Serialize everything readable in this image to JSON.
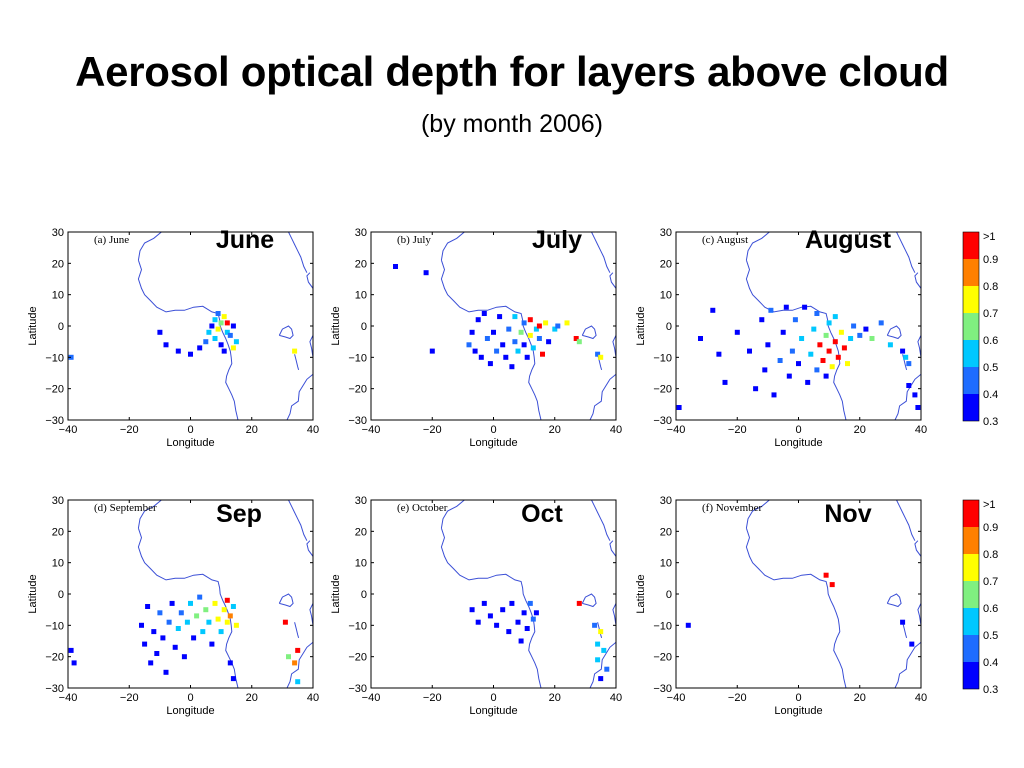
{
  "title": "Aerosol optical depth for layers above cloud",
  "subtitle": "(by month 2006)",
  "colors": {
    "map_outline": "#3b4fd6",
    "scale": [
      "#0000ff",
      "#1e6cff",
      "#00c8ff",
      "#80f080",
      "#ffff00",
      "#ff8000",
      "#ff0000"
    ]
  },
  "colorbar": {
    "labels": [
      ">1",
      "0.9",
      "0.8",
      "0.7",
      "0.6",
      "0.5",
      "0.4",
      "0.3"
    ]
  },
  "chart_data": [
    {
      "type": "scatter",
      "panel_label": "(a) June",
      "month_label": "June",
      "xlabel": "Longitude",
      "ylabel": "Latitude",
      "xlim": [
        -40,
        40
      ],
      "ylim": [
        -30,
        30
      ],
      "xticks": [
        "−40",
        "−20",
        "0",
        "20",
        "40"
      ],
      "yticks": [
        "30",
        "20",
        "10",
        "0",
        "−10",
        "−20",
        "−30"
      ],
      "points": [
        [
          -10,
          -2,
          0.3
        ],
        [
          -8,
          -6,
          0.3
        ],
        [
          -4,
          -8,
          0.3
        ],
        [
          0,
          -9,
          0.3
        ],
        [
          3,
          -7,
          0.35
        ],
        [
          5,
          -5,
          0.45
        ],
        [
          6,
          -2,
          0.5
        ],
        [
          7,
          0,
          0.35
        ],
        [
          8,
          2,
          0.55
        ],
        [
          8,
          -4,
          0.6
        ],
        [
          9,
          -1,
          0.75
        ],
        [
          10,
          1,
          0.65
        ],
        [
          10,
          -6,
          0.3
        ],
        [
          11,
          3,
          0.85
        ],
        [
          12,
          -2,
          0.55
        ],
        [
          12,
          1,
          1.05
        ],
        [
          13,
          -3,
          0.45
        ],
        [
          14,
          0,
          0.35
        ],
        [
          14,
          -7,
          0.8
        ],
        [
          15,
          -5,
          0.6
        ],
        [
          9,
          4,
          0.4
        ],
        [
          11,
          -8,
          0.3
        ],
        [
          -39,
          -10,
          0.4
        ],
        [
          34,
          -8,
          0.75
        ]
      ],
      "colorbar": false
    },
    {
      "type": "scatter",
      "panel_label": "(b) July",
      "month_label": "July",
      "xlabel": "Longitude",
      "ylabel": "Latitude",
      "xlim": [
        -40,
        40
      ],
      "ylim": [
        -30,
        30
      ],
      "xticks": [
        "−40",
        "−20",
        "0",
        "20",
        "40"
      ],
      "yticks": [
        "30",
        "20",
        "10",
        "0",
        "−10",
        "−20",
        "−30"
      ],
      "points": [
        [
          -32,
          19,
          0.3
        ],
        [
          -22,
          17,
          0.3
        ],
        [
          -20,
          -8,
          0.3
        ],
        [
          -8,
          -6,
          0.4
        ],
        [
          -7,
          -2,
          0.3
        ],
        [
          -6,
          -8,
          0.3
        ],
        [
          -5,
          2,
          0.35
        ],
        [
          -4,
          -10,
          0.3
        ],
        [
          -3,
          4,
          0.3
        ],
        [
          -2,
          -4,
          0.45
        ],
        [
          -1,
          -12,
          0.3
        ],
        [
          0,
          -2,
          0.3
        ],
        [
          1,
          -8,
          0.4
        ],
        [
          2,
          3,
          0.3
        ],
        [
          3,
          -6,
          0.3
        ],
        [
          4,
          -10,
          0.35
        ],
        [
          5,
          -1,
          0.4
        ],
        [
          6,
          -13,
          0.3
        ],
        [
          7,
          3,
          0.5
        ],
        [
          7,
          -5,
          0.45
        ],
        [
          8,
          -8,
          0.55
        ],
        [
          9,
          -2,
          0.65
        ],
        [
          10,
          1,
          0.45
        ],
        [
          10,
          -6,
          0.35
        ],
        [
          11,
          -10,
          0.3
        ],
        [
          12,
          -3,
          0.85
        ],
        [
          12,
          2,
          1.05
        ],
        [
          13,
          -7,
          0.5
        ],
        [
          14,
          -1,
          0.6
        ],
        [
          15,
          0,
          1.05
        ],
        [
          15,
          -4,
          0.4
        ],
        [
          16,
          -9,
          1.05
        ],
        [
          17,
          1,
          0.75
        ],
        [
          18,
          -5,
          0.35
        ],
        [
          20,
          -1,
          0.55
        ],
        [
          21,
          0,
          0.45
        ],
        [
          24,
          1,
          0.8
        ],
        [
          27,
          -4,
          1.05
        ],
        [
          28,
          -5,
          0.7
        ],
        [
          34,
          -9,
          0.4
        ],
        [
          35,
          -10,
          0.8
        ]
      ],
      "colorbar": false
    },
    {
      "type": "scatter",
      "panel_label": "(c) August",
      "month_label": "August",
      "xlabel": "Longitude",
      "ylabel": "Latitude",
      "xlim": [
        -40,
        40
      ],
      "ylim": [
        -30,
        30
      ],
      "xticks": [
        "−40",
        "−20",
        "0",
        "20",
        "40"
      ],
      "yticks": [
        "30",
        "20",
        "10",
        "0",
        "−10",
        "−20",
        "−30"
      ],
      "points": [
        [
          -39,
          -26,
          0.3
        ],
        [
          -32,
          -4,
          0.3
        ],
        [
          -28,
          5,
          0.3
        ],
        [
          -26,
          -9,
          0.3
        ],
        [
          -24,
          -18,
          0.3
        ],
        [
          -20,
          -2,
          0.3
        ],
        [
          -16,
          -8,
          0.35
        ],
        [
          -14,
          -20,
          0.3
        ],
        [
          -12,
          2,
          0.3
        ],
        [
          -11,
          -14,
          0.35
        ],
        [
          -10,
          -6,
          0.3
        ],
        [
          -9,
          5,
          0.4
        ],
        [
          -8,
          -22,
          0.3
        ],
        [
          -6,
          -11,
          0.45
        ],
        [
          -5,
          -2,
          0.3
        ],
        [
          -4,
          6,
          0.35
        ],
        [
          -3,
          -16,
          0.3
        ],
        [
          -2,
          -8,
          0.4
        ],
        [
          -1,
          2,
          0.45
        ],
        [
          0,
          -12,
          0.3
        ],
        [
          1,
          -4,
          0.55
        ],
        [
          2,
          6,
          0.3
        ],
        [
          3,
          -18,
          0.35
        ],
        [
          4,
          -9,
          0.6
        ],
        [
          5,
          -1,
          0.5
        ],
        [
          6,
          4,
          0.4
        ],
        [
          6,
          -14,
          0.45
        ],
        [
          7,
          -6,
          1.05
        ],
        [
          8,
          -11,
          1.05
        ],
        [
          9,
          -3,
          0.7
        ],
        [
          9,
          -16,
          0.3
        ],
        [
          10,
          1,
          0.5
        ],
        [
          10,
          -8,
          1.05
        ],
        [
          11,
          -13,
          0.85
        ],
        [
          12,
          -5,
          1.05
        ],
        [
          12,
          3,
          0.6
        ],
        [
          13,
          -10,
          1.05
        ],
        [
          14,
          -2,
          0.75
        ],
        [
          15,
          -7,
          1.05
        ],
        [
          16,
          -12,
          0.8
        ],
        [
          17,
          -4,
          0.55
        ],
        [
          18,
          0,
          0.4
        ],
        [
          20,
          -3,
          0.45
        ],
        [
          22,
          -1,
          0.35
        ],
        [
          24,
          -4,
          0.65
        ],
        [
          27,
          1,
          0.45
        ],
        [
          30,
          -6,
          0.5
        ],
        [
          34,
          -8,
          0.3
        ],
        [
          35,
          -10,
          0.55
        ],
        [
          36,
          -12,
          0.4
        ],
        [
          36,
          -19,
          0.3
        ],
        [
          38,
          -22,
          0.3
        ],
        [
          39,
          -26,
          0.3
        ]
      ],
      "colorbar": true
    },
    {
      "type": "scatter",
      "panel_label": "(d) September",
      "month_label": "Sep",
      "xlabel": "Longitude",
      "ylabel": "Latitude",
      "xlim": [
        -40,
        40
      ],
      "ylim": [
        -30,
        30
      ],
      "xticks": [
        "−40",
        "−20",
        "0",
        "20",
        "40"
      ],
      "yticks": [
        "30",
        "20",
        "10",
        "0",
        "−10",
        "−20",
        "−30"
      ],
      "points": [
        [
          -39,
          -18,
          0.3
        ],
        [
          -38,
          -22,
          0.3
        ],
        [
          -16,
          -10,
          0.3
        ],
        [
          -15,
          -16,
          0.3
        ],
        [
          -14,
          -4,
          0.3
        ],
        [
          -13,
          -22,
          0.3
        ],
        [
          -12,
          -12,
          0.35
        ],
        [
          -11,
          -19,
          0.3
        ],
        [
          -10,
          -6,
          0.4
        ],
        [
          -9,
          -14,
          0.3
        ],
        [
          -8,
          -25,
          0.3
        ],
        [
          -7,
          -9,
          0.45
        ],
        [
          -6,
          -3,
          0.35
        ],
        [
          -5,
          -17,
          0.3
        ],
        [
          -4,
          -11,
          0.55
        ],
        [
          -3,
          -6,
          0.4
        ],
        [
          -2,
          -20,
          0.3
        ],
        [
          -1,
          -9,
          0.6
        ],
        [
          0,
          -3,
          0.5
        ],
        [
          1,
          -14,
          0.35
        ],
        [
          2,
          -7,
          0.65
        ],
        [
          3,
          -1,
          0.45
        ],
        [
          4,
          -12,
          0.5
        ],
        [
          5,
          -5,
          0.7
        ],
        [
          6,
          -9,
          0.55
        ],
        [
          7,
          -16,
          0.3
        ],
        [
          8,
          -3,
          0.8
        ],
        [
          9,
          -8,
          0.75
        ],
        [
          10,
          -12,
          0.6
        ],
        [
          11,
          -5,
          0.85
        ],
        [
          12,
          -2,
          1.05
        ],
        [
          12,
          -9,
          0.8
        ],
        [
          13,
          -7,
          0.9
        ],
        [
          14,
          -4,
          0.6
        ],
        [
          15,
          -10,
          0.75
        ],
        [
          13,
          -22,
          0.3
        ],
        [
          14,
          -27,
          0.3
        ],
        [
          31,
          -9,
          1.05
        ],
        [
          32,
          -20,
          0.65
        ],
        [
          34,
          -22,
          0.9
        ],
        [
          35,
          -18,
          1.05
        ],
        [
          35,
          -28,
          0.5
        ]
      ],
      "colorbar": false
    },
    {
      "type": "scatter",
      "panel_label": "(e) October",
      "month_label": "Oct",
      "xlabel": "Longitude",
      "ylabel": "Latitude",
      "xlim": [
        -40,
        40
      ],
      "ylim": [
        -30,
        30
      ],
      "xticks": [
        "−40",
        "−20",
        "0",
        "20",
        "40"
      ],
      "yticks": [
        "30",
        "20",
        "10",
        "0",
        "−10",
        "−20",
        "−30"
      ],
      "points": [
        [
          -7,
          -5,
          0.3
        ],
        [
          -5,
          -9,
          0.3
        ],
        [
          -3,
          -3,
          0.3
        ],
        [
          -1,
          -7,
          0.3
        ],
        [
          1,
          -10,
          0.3
        ],
        [
          3,
          -5,
          0.3
        ],
        [
          5,
          -12,
          0.3
        ],
        [
          6,
          -3,
          0.3
        ],
        [
          8,
          -9,
          0.3
        ],
        [
          9,
          -15,
          0.3
        ],
        [
          10,
          -6,
          0.35
        ],
        [
          11,
          -11,
          0.3
        ],
        [
          12,
          -3,
          0.4
        ],
        [
          13,
          -8,
          0.45
        ],
        [
          14,
          -6,
          0.3
        ],
        [
          28,
          -3,
          1.05
        ],
        [
          33,
          -10,
          0.4
        ],
        [
          34,
          -16,
          0.6
        ],
        [
          35,
          -12,
          0.75
        ],
        [
          34,
          -21,
          0.5
        ],
        [
          36,
          -18,
          0.55
        ],
        [
          35,
          -27,
          0.3
        ],
        [
          37,
          -24,
          0.4
        ]
      ],
      "colorbar": false
    },
    {
      "type": "scatter",
      "panel_label": "(f) November",
      "month_label": "Nov",
      "xlabel": "Longitude",
      "ylabel": "Latitude",
      "xlim": [
        -40,
        40
      ],
      "ylim": [
        -30,
        30
      ],
      "xticks": [
        "−40",
        "−20",
        "0",
        "20",
        "40"
      ],
      "yticks": [
        "30",
        "20",
        "10",
        "0",
        "−10",
        "−20",
        "−30"
      ],
      "points": [
        [
          -36,
          -10,
          0.3
        ],
        [
          9,
          6,
          1.05
        ],
        [
          11,
          3,
          1.05
        ],
        [
          34,
          -9,
          0.3
        ],
        [
          37,
          -16,
          0.3
        ]
      ],
      "colorbar": true
    }
  ]
}
